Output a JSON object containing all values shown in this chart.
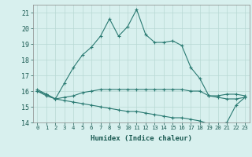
{
  "x": [
    0,
    1,
    2,
    3,
    4,
    5,
    6,
    7,
    8,
    9,
    10,
    11,
    12,
    13,
    14,
    15,
    16,
    17,
    18,
    19,
    20,
    21,
    22,
    23
  ],
  "line1": [
    16.1,
    15.8,
    15.5,
    16.5,
    17.5,
    18.3,
    18.8,
    19.5,
    20.6,
    19.5,
    20.1,
    21.2,
    19.6,
    19.1,
    19.1,
    19.2,
    18.9,
    17.5,
    16.8,
    15.7,
    15.7,
    15.8,
    15.8,
    15.7
  ],
  "line2": [
    16.0,
    15.8,
    15.5,
    15.6,
    15.7,
    15.9,
    16.0,
    16.1,
    16.1,
    16.1,
    16.1,
    16.1,
    16.1,
    16.1,
    16.1,
    16.1,
    16.1,
    16.0,
    16.0,
    15.7,
    15.6,
    15.5,
    15.5,
    15.6
  ],
  "line3": [
    16.0,
    15.7,
    15.5,
    15.4,
    15.3,
    15.2,
    15.1,
    15.0,
    14.9,
    14.8,
    14.7,
    14.7,
    14.6,
    14.5,
    14.4,
    14.3,
    14.3,
    14.2,
    14.1,
    13.9,
    13.9,
    14.0,
    15.1,
    15.6
  ],
  "line_color": "#2a7a72",
  "bg_color": "#d8f0ee",
  "grid_color": "#b8d8d4",
  "xlabel": "Humidex (Indice chaleur)",
  "ylim": [
    14,
    21.5
  ],
  "xlim": [
    -0.5,
    23.5
  ],
  "yticks": [
    14,
    15,
    16,
    17,
    18,
    19,
    20,
    21
  ],
  "xtick_labels": [
    "0",
    "1",
    "2",
    "3",
    "4",
    "5",
    "6",
    "7",
    "8",
    "9",
    "10",
    "11",
    "12",
    "13",
    "14",
    "15",
    "16",
    "17",
    "18",
    "19",
    "20",
    "21",
    "22",
    "23"
  ]
}
